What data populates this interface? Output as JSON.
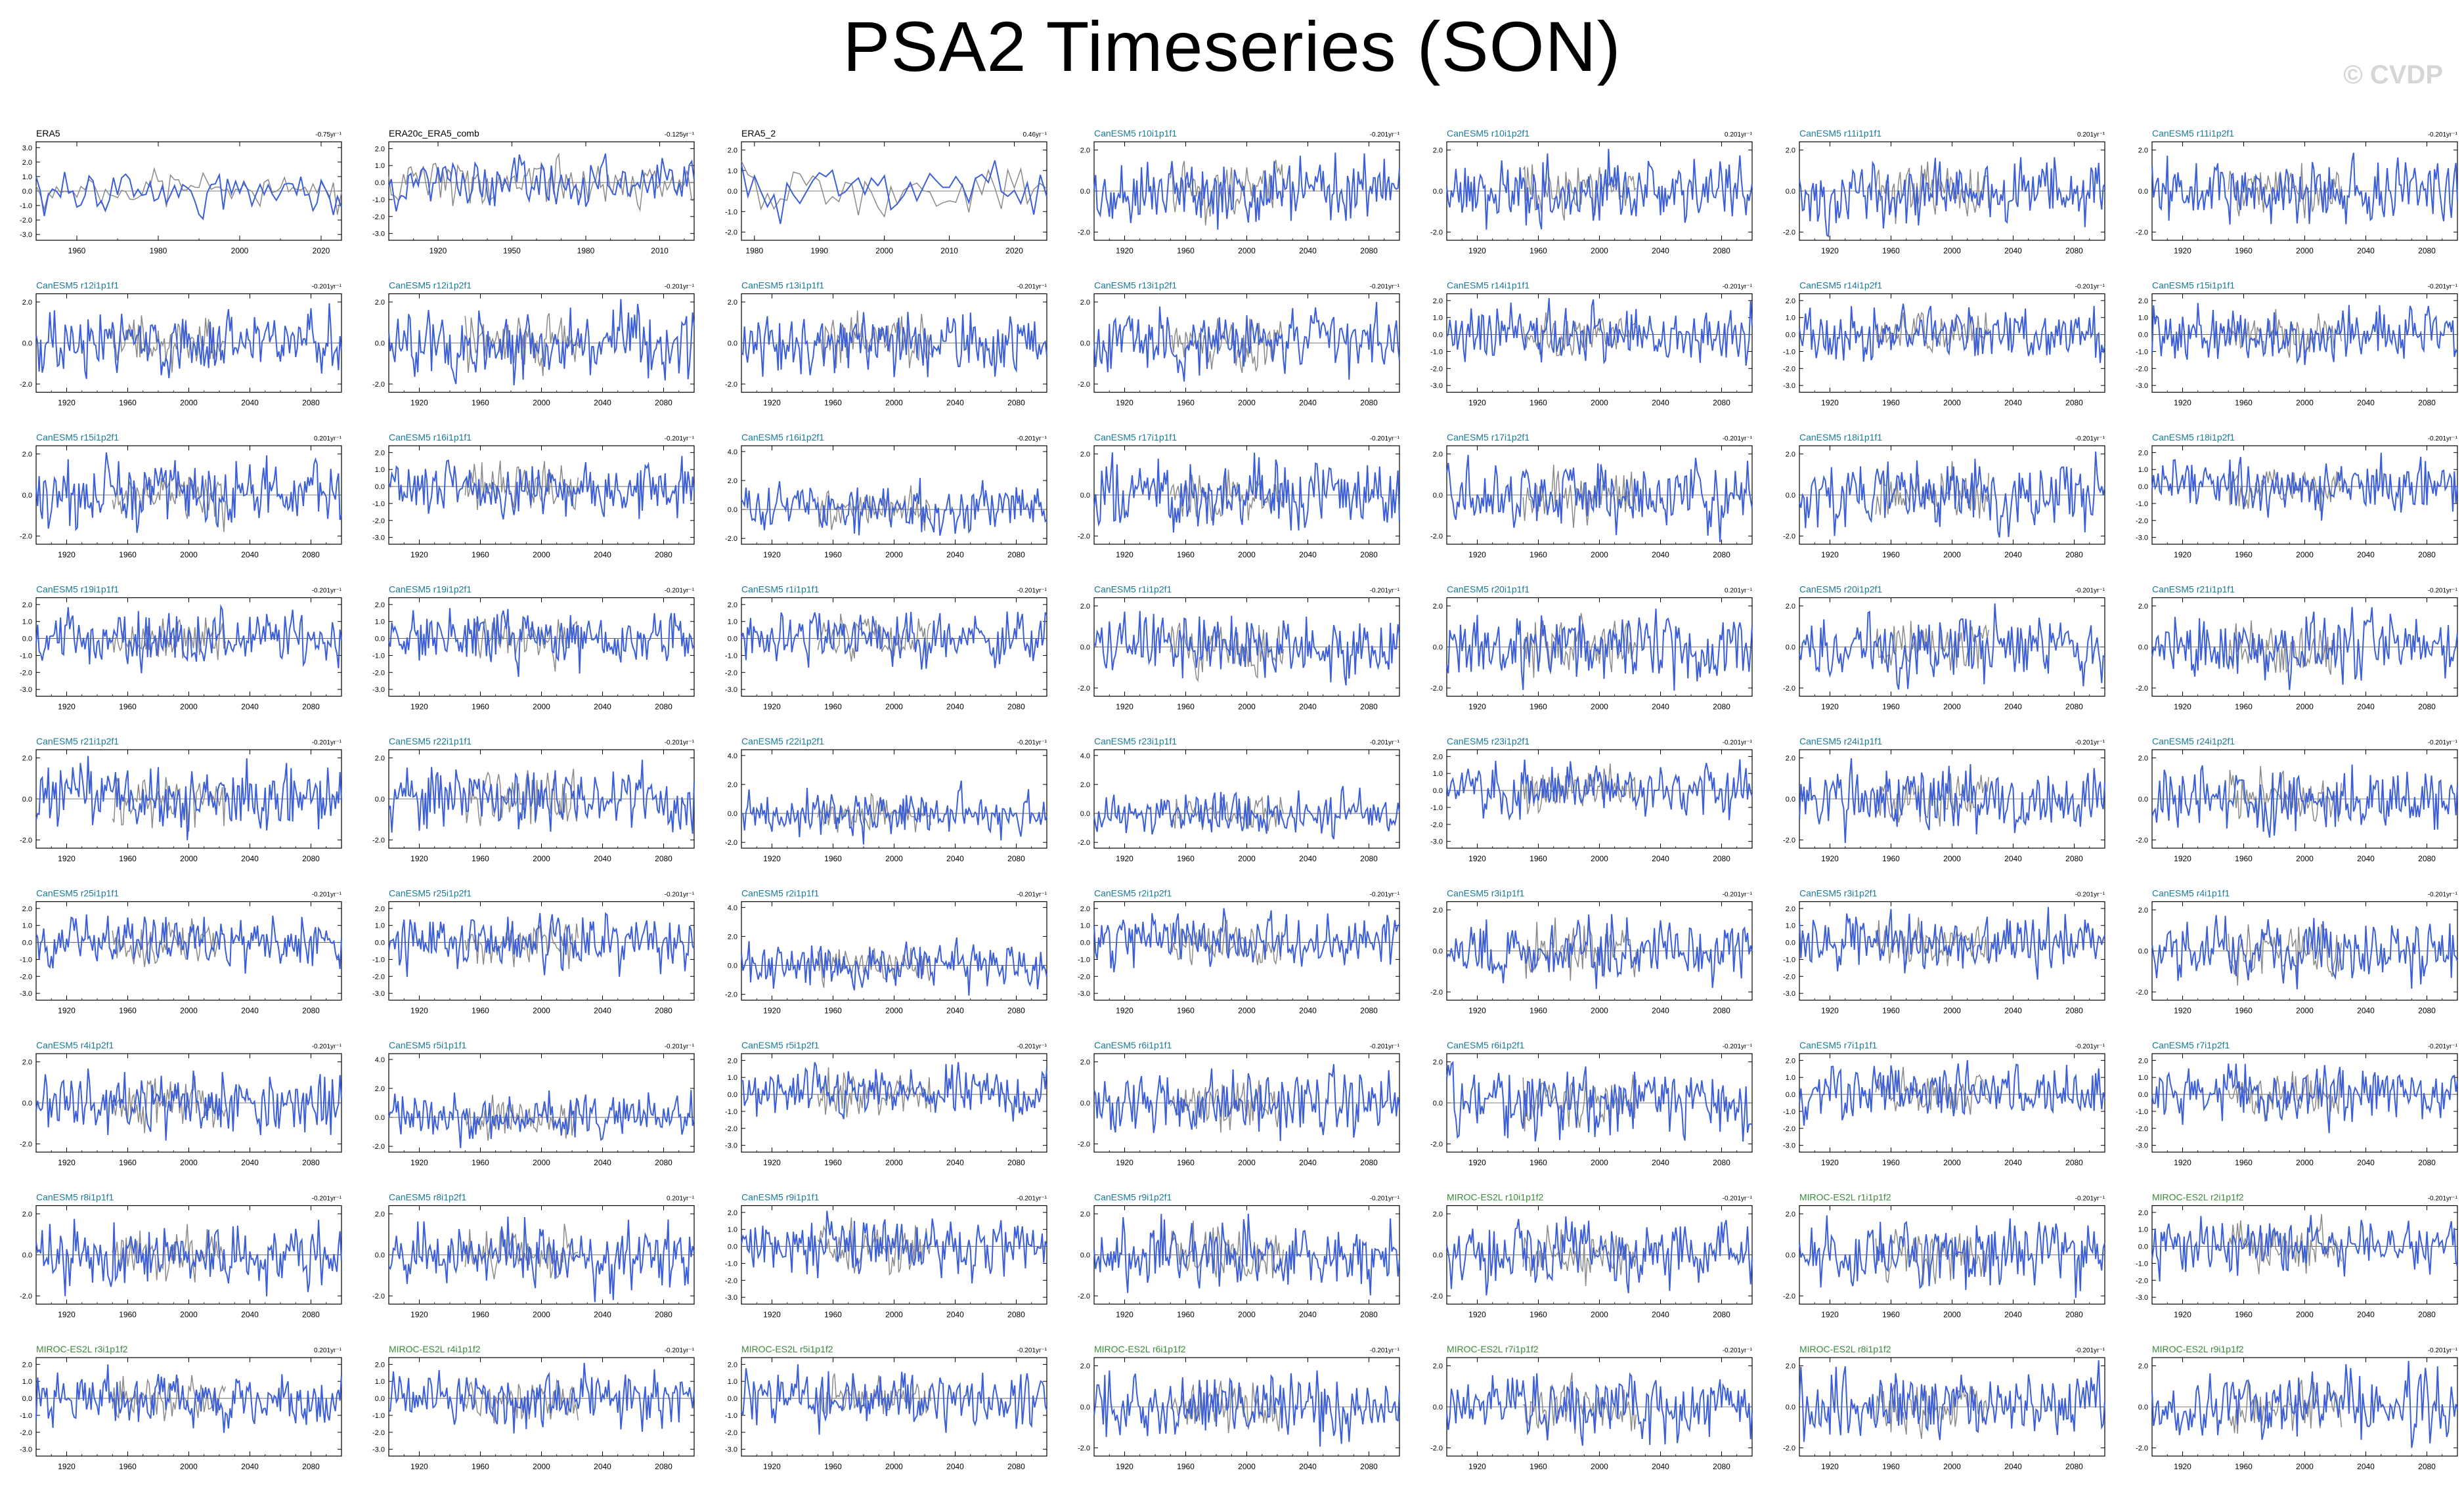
{
  "title": "PSA2 Timeseries (SON)",
  "watermark": "© CVDP",
  "colors": {
    "obs_label": "#000000",
    "canesm5_label": "#1a7a99",
    "miroc_label": "#3a8a3a",
    "model_line": "#3c5fd8",
    "obs_bg_line": "#8a8a8a"
  },
  "chart_data": [
    {
      "type": "line",
      "name": "ERA5",
      "trend": "-0.75yr⁻¹",
      "group": "obs",
      "xlim": [
        1950,
        2025
      ],
      "xticks": [
        "1960",
        "1980",
        "2000",
        "2020"
      ],
      "yticks": [
        "3.0",
        "2.0",
        "1.0",
        "0.0",
        "-1.0",
        "-2.0",
        "-3.0"
      ],
      "seed": 11
    },
    {
      "type": "line",
      "name": "ERA20c_ERA5_comb",
      "trend": "-0.125yr⁻¹",
      "group": "obs",
      "xlim": [
        1900,
        2024
      ],
      "xticks": [
        "1920",
        "1950",
        "1980",
        "2010"
      ],
      "yticks": [
        "2.0",
        "1.0",
        "0.0",
        "-1.0",
        "-2.0",
        "-3.0"
      ],
      "seed": 12
    },
    {
      "type": "line",
      "name": "ERA5_2",
      "trend": "0.46yr⁻¹",
      "group": "obs",
      "xlim": [
        1978,
        2025
      ],
      "xticks": [
        "1980",
        "1990",
        "2000",
        "2010",
        "2020"
      ],
      "yticks": [
        "2.0",
        "1.0",
        "0.0",
        "-1.0",
        "-2.0"
      ],
      "seed": 13
    },
    {
      "type": "line",
      "name": "CanESM5 r10i1p1f1",
      "trend": "-0.201yr⁻¹",
      "group": "canesm5",
      "yticks": [
        "2.0",
        "0.0",
        "-2.0"
      ],
      "seed": 14
    },
    {
      "type": "line",
      "name": "CanESM5 r10i1p2f1",
      "trend": "0.201yr⁻¹",
      "group": "canesm5",
      "yticks": [
        "2.0",
        "0.0",
        "-2.0"
      ],
      "seed": 15
    },
    {
      "type": "line",
      "name": "CanESM5 r11i1p1f1",
      "trend": "0.201yr⁻¹",
      "group": "canesm5",
      "yticks": [
        "2.0",
        "0.0",
        "-2.0"
      ],
      "seed": 16
    },
    {
      "type": "line",
      "name": "CanESM5 r11i1p2f1",
      "trend": "-0.201yr⁻¹",
      "group": "canesm5",
      "yticks": [
        "2.0",
        "0.0",
        "-2.0"
      ],
      "seed": 17
    },
    {
      "type": "line",
      "name": "CanESM5 r12i1p1f1",
      "trend": "-0.201yr⁻¹",
      "group": "canesm5",
      "yticks": [
        "2.0",
        "0.0",
        "-2.0"
      ],
      "seed": 21
    },
    {
      "type": "line",
      "name": "CanESM5 r12i1p2f1",
      "trend": "-0.201yr⁻¹",
      "group": "canesm5",
      "yticks": [
        "2.0",
        "0.0",
        "-2.0"
      ],
      "seed": 22
    },
    {
      "type": "line",
      "name": "CanESM5 r13i1p1f1",
      "trend": "-0.201yr⁻¹",
      "group": "canesm5",
      "yticks": [
        "2.0",
        "0.0",
        "-2.0"
      ],
      "seed": 23
    },
    {
      "type": "line",
      "name": "CanESM5 r13i1p2f1",
      "trend": "-0.201yr⁻¹",
      "group": "canesm5",
      "yticks": [
        "2.0",
        "0.0",
        "-2.0"
      ],
      "seed": 24
    },
    {
      "type": "line",
      "name": "CanESM5 r14i1p1f1",
      "trend": "-0.201yr⁻¹",
      "group": "canesm5",
      "yticks": [
        "2.0",
        "1.0",
        "0.0",
        "-1.0",
        "-2.0",
        "-3.0"
      ],
      "seed": 25
    },
    {
      "type": "line",
      "name": "CanESM5 r14i1p2f1",
      "trend": "-0.201yr⁻¹",
      "group": "canesm5",
      "yticks": [
        "2.0",
        "1.0",
        "0.0",
        "-1.0",
        "-2.0",
        "-3.0"
      ],
      "seed": 26
    },
    {
      "type": "line",
      "name": "CanESM5 r15i1p1f1",
      "trend": "-0.201yr⁻¹",
      "group": "canesm5",
      "yticks": [
        "2.0",
        "1.0",
        "0.0",
        "-1.0",
        "-2.0",
        "-3.0"
      ],
      "seed": 27
    },
    {
      "type": "line",
      "name": "CanESM5 r15i1p2f1",
      "trend": "0.201yr⁻¹",
      "group": "canesm5",
      "yticks": [
        "2.0",
        "0.0",
        "-2.0"
      ],
      "seed": 31
    },
    {
      "type": "line",
      "name": "CanESM5 r16i1p1f1",
      "trend": "-0.201yr⁻¹",
      "group": "canesm5",
      "yticks": [
        "2.0",
        "1.0",
        "0.0",
        "-1.0",
        "-2.0",
        "-3.0"
      ],
      "seed": 32
    },
    {
      "type": "line",
      "name": "CanESM5 r16i1p2f1",
      "trend": "-0.201yr⁻¹",
      "group": "canesm5",
      "yticks": [
        "4.0",
        "2.0",
        "0.0",
        "-2.0"
      ],
      "seed": 33
    },
    {
      "type": "line",
      "name": "CanESM5 r17i1p1f1",
      "trend": "-0.201yr⁻¹",
      "group": "canesm5",
      "yticks": [
        "2.0",
        "0.0",
        "-2.0"
      ],
      "seed": 34
    },
    {
      "type": "line",
      "name": "CanESM5 r17i1p2f1",
      "trend": "-0.201yr⁻¹",
      "group": "canesm5",
      "yticks": [
        "2.0",
        "0.0",
        "-2.0"
      ],
      "seed": 35
    },
    {
      "type": "line",
      "name": "CanESM5 r18i1p1f1",
      "trend": "-0.201yr⁻¹",
      "group": "canesm5",
      "yticks": [
        "2.0",
        "0.0",
        "-2.0"
      ],
      "seed": 36
    },
    {
      "type": "line",
      "name": "CanESM5 r18i1p2f1",
      "trend": "-0.201yr⁻¹",
      "group": "canesm5",
      "yticks": [
        "2.0",
        "1.0",
        "0.0",
        "-1.0",
        "-2.0",
        "-3.0"
      ],
      "seed": 37
    },
    {
      "type": "line",
      "name": "CanESM5 r19i1p1f1",
      "trend": "-0.201yr⁻¹",
      "group": "canesm5",
      "yticks": [
        "2.0",
        "1.0",
        "0.0",
        "-1.0",
        "-2.0",
        "-3.0"
      ],
      "seed": 41
    },
    {
      "type": "line",
      "name": "CanESM5 r19i1p2f1",
      "trend": "-0.201yr⁻¹",
      "group": "canesm5",
      "yticks": [
        "2.0",
        "1.0",
        "0.0",
        "-1.0",
        "-2.0",
        "-3.0"
      ],
      "seed": 42
    },
    {
      "type": "line",
      "name": "CanESM5 r1i1p1f1",
      "trend": "-0.201yr⁻¹",
      "group": "canesm5",
      "yticks": [
        "2.0",
        "1.0",
        "0.0",
        "-1.0",
        "-2.0",
        "-3.0"
      ],
      "seed": 43
    },
    {
      "type": "line",
      "name": "CanESM5 r1i1p2f1",
      "trend": "-0.201yr⁻¹",
      "group": "canesm5",
      "yticks": [
        "2.0",
        "0.0",
        "-2.0"
      ],
      "seed": 44
    },
    {
      "type": "line",
      "name": "CanESM5 r20i1p1f1",
      "trend": "0.201yr⁻¹",
      "group": "canesm5",
      "yticks": [
        "2.0",
        "0.0",
        "-2.0"
      ],
      "seed": 45
    },
    {
      "type": "line",
      "name": "CanESM5 r20i1p2f1",
      "trend": "-0.201yr⁻¹",
      "group": "canesm5",
      "yticks": [
        "2.0",
        "0.0",
        "-2.0"
      ],
      "seed": 46
    },
    {
      "type": "line",
      "name": "CanESM5 r21i1p1f1",
      "trend": "-0.201yr⁻¹",
      "group": "canesm5",
      "yticks": [
        "2.0",
        "0.0",
        "-2.0"
      ],
      "seed": 47
    },
    {
      "type": "line",
      "name": "CanESM5 r21i1p2f1",
      "trend": "-0.201yr⁻¹",
      "group": "canesm5",
      "yticks": [
        "2.0",
        "0.0",
        "-2.0"
      ],
      "seed": 51
    },
    {
      "type": "line",
      "name": "CanESM5 r22i1p1f1",
      "trend": "-0.201yr⁻¹",
      "group": "canesm5",
      "yticks": [
        "2.0",
        "0.0",
        "-2.0"
      ],
      "seed": 52
    },
    {
      "type": "line",
      "name": "CanESM5 r22i1p2f1",
      "trend": "-0.201yr⁻¹",
      "group": "canesm5",
      "yticks": [
        "4.0",
        "2.0",
        "0.0",
        "-2.0"
      ],
      "seed": 53
    },
    {
      "type": "line",
      "name": "CanESM5 r23i1p1f1",
      "trend": "-0.201yr⁻¹",
      "group": "canesm5",
      "yticks": [
        "4.0",
        "2.0",
        "0.0",
        "-2.0"
      ],
      "seed": 54
    },
    {
      "type": "line",
      "name": "CanESM5 r23i1p2f1",
      "trend": "-0.201yr⁻¹",
      "group": "canesm5",
      "yticks": [
        "2.0",
        "1.0",
        "0.0",
        "-1.0",
        "-2.0",
        "-3.0"
      ],
      "seed": 55
    },
    {
      "type": "line",
      "name": "CanESM5 r24i1p1f1",
      "trend": "-0.201yr⁻¹",
      "group": "canesm5",
      "yticks": [
        "2.0",
        "0.0",
        "-2.0"
      ],
      "seed": 56
    },
    {
      "type": "line",
      "name": "CanESM5 r24i1p2f1",
      "trend": "-0.201yr⁻¹",
      "group": "canesm5",
      "yticks": [
        "2.0",
        "0.0",
        "-2.0"
      ],
      "seed": 57
    },
    {
      "type": "line",
      "name": "CanESM5 r25i1p1f1",
      "trend": "-0.201yr⁻¹",
      "group": "canesm5",
      "yticks": [
        "2.0",
        "1.0",
        "0.0",
        "-1.0",
        "-2.0",
        "-3.0"
      ],
      "seed": 61
    },
    {
      "type": "line",
      "name": "CanESM5 r25i1p2f1",
      "trend": "-0.201yr⁻¹",
      "group": "canesm5",
      "yticks": [
        "2.0",
        "1.0",
        "0.0",
        "-1.0",
        "-2.0",
        "-3.0"
      ],
      "seed": 62
    },
    {
      "type": "line",
      "name": "CanESM5 r2i1p1f1",
      "trend": "-0.201yr⁻¹",
      "group": "canesm5",
      "yticks": [
        "4.0",
        "2.0",
        "0.0",
        "-2.0"
      ],
      "seed": 63
    },
    {
      "type": "line",
      "name": "CanESM5 r2i1p2f1",
      "trend": "-0.201yr⁻¹",
      "group": "canesm5",
      "yticks": [
        "2.0",
        "1.0",
        "0.0",
        "-1.0",
        "-2.0",
        "-3.0"
      ],
      "seed": 64
    },
    {
      "type": "line",
      "name": "CanESM5 r3i1p1f1",
      "trend": "-0.201yr⁻¹",
      "group": "canesm5",
      "yticks": [
        "2.0",
        "0.0",
        "-2.0"
      ],
      "seed": 65
    },
    {
      "type": "line",
      "name": "CanESM5 r3i1p2f1",
      "trend": "-0.201yr⁻¹",
      "group": "canesm5",
      "yticks": [
        "2.0",
        "1.0",
        "0.0",
        "-1.0",
        "-2.0",
        "-3.0"
      ],
      "seed": 66
    },
    {
      "type": "line",
      "name": "CanESM5 r4i1p1f1",
      "trend": "-0.201yr⁻¹",
      "group": "canesm5",
      "yticks": [
        "2.0",
        "0.0",
        "-2.0"
      ],
      "seed": 67
    },
    {
      "type": "line",
      "name": "CanESM5 r4i1p2f1",
      "trend": "-0.201yr⁻¹",
      "group": "canesm5",
      "yticks": [
        "2.0",
        "0.0",
        "-2.0"
      ],
      "seed": 71
    },
    {
      "type": "line",
      "name": "CanESM5 r5i1p1f1",
      "trend": "-0.201yr⁻¹",
      "group": "canesm5",
      "yticks": [
        "4.0",
        "2.0",
        "0.0",
        "-2.0"
      ],
      "seed": 72
    },
    {
      "type": "line",
      "name": "CanESM5 r5i1p2f1",
      "trend": "-0.201yr⁻¹",
      "group": "canesm5",
      "yticks": [
        "2.0",
        "1.0",
        "0.0",
        "-1.0",
        "-2.0",
        "-3.0"
      ],
      "seed": 73
    },
    {
      "type": "line",
      "name": "CanESM5 r6i1p1f1",
      "trend": "-0.201yr⁻¹",
      "group": "canesm5",
      "yticks": [
        "2.0",
        "0.0",
        "-2.0"
      ],
      "seed": 74
    },
    {
      "type": "line",
      "name": "CanESM5 r6i1p2f1",
      "trend": "-0.201yr⁻¹",
      "group": "canesm5",
      "yticks": [
        "2.0",
        "0.0",
        "-2.0"
      ],
      "seed": 75
    },
    {
      "type": "line",
      "name": "CanESM5 r7i1p1f1",
      "trend": "-0.201yr⁻¹",
      "group": "canesm5",
      "yticks": [
        "2.0",
        "1.0",
        "0.0",
        "-1.0",
        "-2.0",
        "-3.0"
      ],
      "seed": 76
    },
    {
      "type": "line",
      "name": "CanESM5 r7i1p2f1",
      "trend": "-0.201yr⁻¹",
      "group": "canesm5",
      "yticks": [
        "2.0",
        "1.0",
        "0.0",
        "-1.0",
        "-2.0",
        "-3.0"
      ],
      "seed": 77
    },
    {
      "type": "line",
      "name": "CanESM5 r8i1p1f1",
      "trend": "-0.201yr⁻¹",
      "group": "canesm5",
      "yticks": [
        "2.0",
        "0.0",
        "-2.0"
      ],
      "seed": 81
    },
    {
      "type": "line",
      "name": "CanESM5 r8i1p2f1",
      "trend": "0.201yr⁻¹",
      "group": "canesm5",
      "yticks": [
        "2.0",
        "0.0",
        "-2.0"
      ],
      "seed": 82
    },
    {
      "type": "line",
      "name": "CanESM5 r9i1p1f1",
      "trend": "-0.201yr⁻¹",
      "group": "canesm5",
      "yticks": [
        "2.0",
        "1.0",
        "0.0",
        "-1.0",
        "-2.0",
        "-3.0"
      ],
      "seed": 83
    },
    {
      "type": "line",
      "name": "CanESM5 r9i1p2f1",
      "trend": "-0.201yr⁻¹",
      "group": "canesm5",
      "yticks": [
        "2.0",
        "0.0",
        "-2.0"
      ],
      "seed": 84
    },
    {
      "type": "line",
      "name": "MIROC-ES2L r10i1p1f2",
      "trend": "-0.201yr⁻¹",
      "group": "miroc",
      "yticks": [
        "2.0",
        "0.0",
        "-2.0"
      ],
      "seed": 85
    },
    {
      "type": "line",
      "name": "MIROC-ES2L r1i1p1f2",
      "trend": "-0.201yr⁻¹",
      "group": "miroc",
      "yticks": [
        "2.0",
        "0.0",
        "-2.0"
      ],
      "seed": 86
    },
    {
      "type": "line",
      "name": "MIROC-ES2L r2i1p1f2",
      "trend": "-0.201yr⁻¹",
      "group": "miroc",
      "yticks": [
        "2.0",
        "1.0",
        "0.0",
        "-1.0",
        "-2.0",
        "-3.0"
      ],
      "seed": 87
    },
    {
      "type": "line",
      "name": "MIROC-ES2L r3i1p1f2",
      "trend": "0.201yr⁻¹",
      "group": "miroc",
      "yticks": [
        "2.0",
        "1.0",
        "0.0",
        "-1.0",
        "-2.0",
        "-3.0"
      ],
      "seed": 91
    },
    {
      "type": "line",
      "name": "MIROC-ES2L r4i1p1f2",
      "trend": "-0.201yr⁻¹",
      "group": "miroc",
      "yticks": [
        "2.0",
        "1.0",
        "0.0",
        "-1.0",
        "-2.0",
        "-3.0"
      ],
      "seed": 92
    },
    {
      "type": "line",
      "name": "MIROC-ES2L r5i1p1f2",
      "trend": "-0.201yr⁻¹",
      "group": "miroc",
      "yticks": [
        "2.0",
        "1.0",
        "0.0",
        "-1.0",
        "-2.0",
        "-3.0"
      ],
      "seed": 93
    },
    {
      "type": "line",
      "name": "MIROC-ES2L r6i1p1f2",
      "trend": "-0.201yr⁻¹",
      "group": "miroc",
      "yticks": [
        "2.0",
        "0.0",
        "-2.0"
      ],
      "seed": 94
    },
    {
      "type": "line",
      "name": "MIROC-ES2L r7i1p1f2",
      "trend": "-0.201yr⁻¹",
      "group": "miroc",
      "yticks": [
        "2.0",
        "0.0",
        "-2.0"
      ],
      "seed": 95
    },
    {
      "type": "line",
      "name": "MIROC-ES2L r8i1p1f2",
      "trend": "-0.201yr⁻¹",
      "group": "miroc",
      "yticks": [
        "2.0",
        "0.0",
        "-2.0"
      ],
      "seed": 96
    },
    {
      "type": "line",
      "name": "MIROC-ES2L r9i1p1f2",
      "trend": "-0.201yr⁻¹",
      "group": "miroc",
      "yticks": [
        "2.0",
        "0.0",
        "-2.0"
      ],
      "seed": 97
    }
  ],
  "model_defaults": {
    "xlim": [
      1900,
      2100
    ],
    "xticks": [
      "1920",
      "1960",
      "2000",
      "2040",
      "2080"
    ]
  }
}
